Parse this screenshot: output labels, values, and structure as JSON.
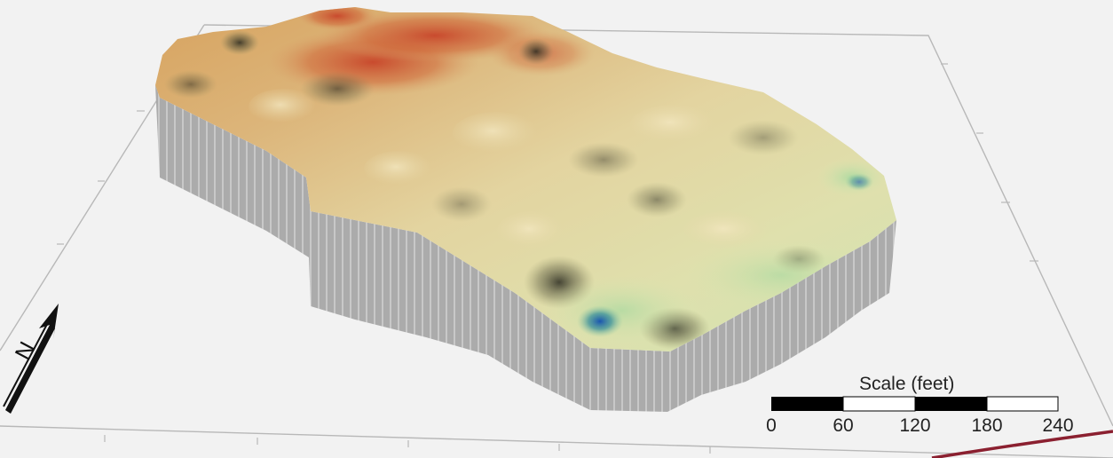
{
  "scale_bar": {
    "title": "Scale (feet)",
    "ticks": [
      "0",
      "60",
      "120",
      "180",
      "240"
    ],
    "segment_colors": [
      "#000000",
      "#ffffff",
      "#000000",
      "#ffffff"
    ]
  },
  "north_arrow": {
    "letter": "N"
  },
  "colors": {
    "background": "#f2f2f2",
    "box_lines": "#b8b8b8",
    "walls": "#a8a8a8",
    "road_line": "#8b2030",
    "surface_high": "#c84a2a",
    "surface_mid": "#d9c49a",
    "surface_low_green": "#c9dfa8",
    "surface_low_blue": "#1f5fa8"
  }
}
